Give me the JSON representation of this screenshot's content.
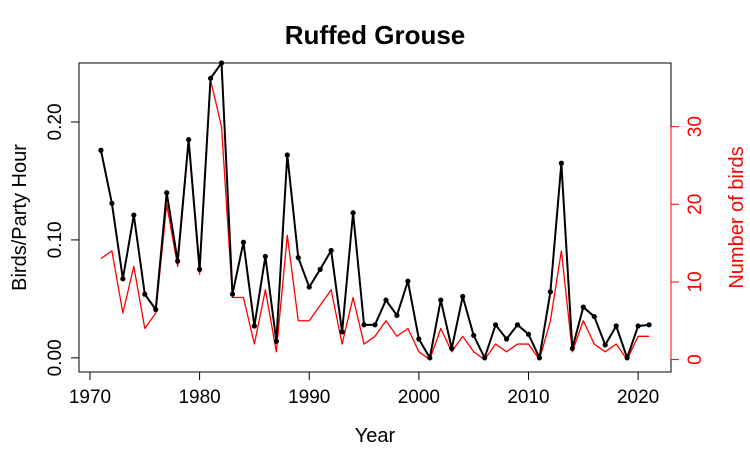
{
  "chart_data": {
    "type": "line",
    "title": "Ruffed Grouse",
    "xlabel": "Year",
    "ylabel": "Birds/Party Hour",
    "y2label": "Number of birds",
    "xlim": [
      1969,
      2023
    ],
    "ylim": [
      -0.012,
      0.25
    ],
    "y2lim": [
      -1.6,
      38.2
    ],
    "x_ticks": [
      1970,
      1980,
      1990,
      2000,
      2010,
      2020
    ],
    "x_tick_labels": [
      "1970",
      "1980",
      "1990",
      "2000",
      "2010",
      "2020"
    ],
    "y_ticks": [
      0.0,
      0.1,
      0.2
    ],
    "y_tick_labels": [
      "0.00",
      "0.10",
      "0.20"
    ],
    "y2_ticks": [
      0,
      10,
      20,
      30
    ],
    "y2_tick_labels": [
      "0",
      "10",
      "20",
      "30"
    ],
    "colors": {
      "left_axis": "#000000",
      "right_axis": "#ff0000"
    },
    "x": [
      1971,
      1972,
      1973,
      1974,
      1975,
      1976,
      1977,
      1978,
      1979,
      1980,
      1981,
      1982,
      1983,
      1984,
      1985,
      1986,
      1987,
      1988,
      1989,
      1990,
      1991,
      1992,
      1993,
      1994,
      1995,
      1996,
      1997,
      1998,
      1999,
      2000,
      2001,
      2002,
      2003,
      2004,
      2005,
      2006,
      2007,
      2008,
      2009,
      2010,
      2011,
      2012,
      2013,
      2014,
      2015,
      2016,
      2017,
      2018,
      2019,
      2020,
      2021
    ],
    "series": [
      {
        "axis": "left",
        "color": "#000000",
        "markers": true,
        "values": [
          0.176,
          0.131,
          0.067,
          0.121,
          0.054,
          0.041,
          0.14,
          0.082,
          0.185,
          0.075,
          0.237,
          0.25,
          0.054,
          0.098,
          0.027,
          0.086,
          0.014,
          0.172,
          0.085,
          0.06,
          0.075,
          0.091,
          0.022,
          0.123,
          0.028,
          0.028,
          0.049,
          0.036,
          0.065,
          0.016,
          0.0,
          0.049,
          0.008,
          0.052,
          0.019,
          0.0,
          0.028,
          0.016,
          0.028,
          0.02,
          0.0,
          0.056,
          0.165,
          0.008,
          0.043,
          0.035,
          0.011,
          0.027,
          0.0,
          0.027,
          0.028
        ]
      },
      {
        "axis": "right",
        "color": "#ff0000",
        "markers": false,
        "values": [
          13,
          14,
          6,
          12,
          4,
          6,
          20,
          12,
          28,
          11,
          36,
          30,
          8,
          8,
          2,
          9,
          1,
          16,
          5,
          5,
          7,
          9,
          2,
          8,
          2,
          3,
          5,
          3,
          4,
          1,
          0,
          4,
          1,
          3,
          1,
          0,
          2,
          1,
          2,
          2,
          0,
          5,
          14,
          1,
          5,
          2,
          1,
          2,
          0,
          3,
          3
        ]
      }
    ]
  }
}
